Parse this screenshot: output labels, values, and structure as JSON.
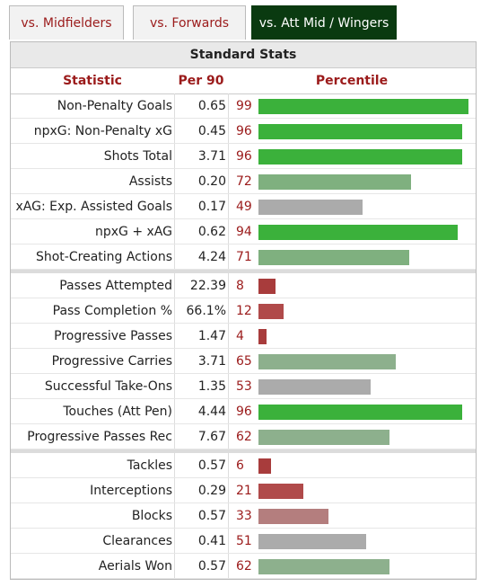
{
  "tabs": [
    "vs. Midfielders",
    "vs. Forwards",
    "vs. Att Mid / Wingers"
  ],
  "active_tab": 2,
  "table": {
    "title": "Standard Stats",
    "headers": {
      "statistic": "Statistic",
      "per90": "Per 90",
      "percentile": "Percentile"
    }
  },
  "colors": {
    "green": "#3bb13b",
    "light_green": "#7fb07f",
    "pale_green": "#8db08d",
    "gray": "#ababab",
    "light_red": "#b47e7e",
    "red": "#b04a4a",
    "dark_red": "#a83c3c",
    "tab_active_bg": "#0a3a10",
    "tab_text": "#9b1b1b"
  },
  "groups": [
    [
      {
        "stat": "Non-Penalty Goals",
        "per90": "0.65",
        "pct": "99",
        "color": "green"
      },
      {
        "stat": "npxG: Non-Penalty xG",
        "per90": "0.45",
        "pct": "96",
        "color": "green"
      },
      {
        "stat": "Shots Total",
        "per90": "3.71",
        "pct": "96",
        "color": "green"
      },
      {
        "stat": "Assists",
        "per90": "0.20",
        "pct": "72",
        "color": "light_green"
      },
      {
        "stat": "xAG: Exp. Assisted Goals",
        "per90": "0.17",
        "pct": "49",
        "color": "gray"
      },
      {
        "stat": "npxG + xAG",
        "per90": "0.62",
        "pct": "94",
        "color": "green"
      },
      {
        "stat": "Shot-Creating Actions",
        "per90": "4.24",
        "pct": "71",
        "color": "light_green"
      }
    ],
    [
      {
        "stat": "Passes Attempted",
        "per90": "22.39",
        "pct": "8",
        "color": "dark_red"
      },
      {
        "stat": "Pass Completion %",
        "per90": "66.1%",
        "pct": "12",
        "color": "red"
      },
      {
        "stat": "Progressive Passes",
        "per90": "1.47",
        "pct": "4",
        "color": "dark_red"
      },
      {
        "stat": "Progressive Carries",
        "per90": "3.71",
        "pct": "65",
        "color": "pale_green"
      },
      {
        "stat": "Successful Take-Ons",
        "per90": "1.35",
        "pct": "53",
        "color": "gray"
      },
      {
        "stat": "Touches (Att Pen)",
        "per90": "4.44",
        "pct": "96",
        "color": "green"
      },
      {
        "stat": "Progressive Passes Rec",
        "per90": "7.67",
        "pct": "62",
        "color": "pale_green"
      }
    ],
    [
      {
        "stat": "Tackles",
        "per90": "0.57",
        "pct": "6",
        "color": "dark_red"
      },
      {
        "stat": "Interceptions",
        "per90": "0.29",
        "pct": "21",
        "color": "red"
      },
      {
        "stat": "Blocks",
        "per90": "0.57",
        "pct": "33",
        "color": "light_red"
      },
      {
        "stat": "Clearances",
        "per90": "0.41",
        "pct": "51",
        "color": "gray"
      },
      {
        "stat": "Aerials Won",
        "per90": "0.57",
        "pct": "62",
        "color": "pale_green"
      }
    ]
  ]
}
